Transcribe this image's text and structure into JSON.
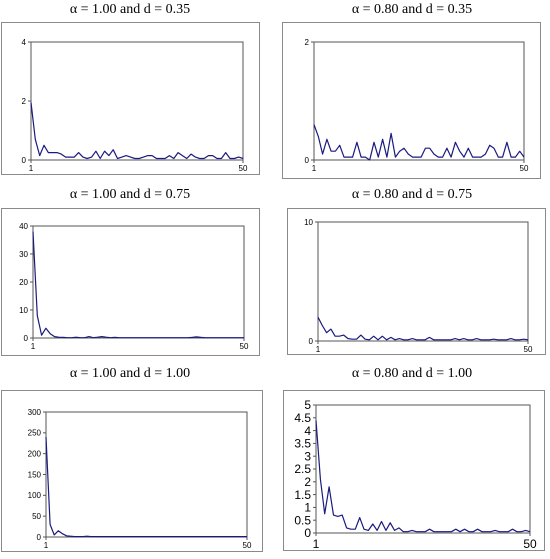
{
  "chart_data": [
    {
      "type": "line",
      "title": "α = 1.00 and d = 0.35",
      "ylim": [
        0,
        4
      ],
      "yticks": [
        0,
        2,
        4
      ],
      "xlim": [
        1,
        50
      ],
      "xticks": [
        1,
        50
      ],
      "grid": false,
      "series": [
        {
          "color": "#1a1a80",
          "values": [
            1.95,
            0.7,
            0.15,
            0.5,
            0.25,
            0.25,
            0.25,
            0.2,
            0.1,
            0.1,
            0.1,
            0.25,
            0.1,
            0.05,
            0.1,
            0.3,
            0.05,
            0.3,
            0.15,
            0.35,
            0.05,
            0.1,
            0.15,
            0.1,
            0.05,
            0.05,
            0.1,
            0.15,
            0.15,
            0.05,
            0.05,
            0.05,
            0.15,
            0.05,
            0.25,
            0.15,
            0.05,
            0.2,
            0.1,
            0.05,
            0.05,
            0.15,
            0.15,
            0.05,
            0.05,
            0.25,
            0.05,
            0.05,
            0.1,
            0.05
          ]
        }
      ]
    },
    {
      "type": "line",
      "title": "α = 0.80 and d = 0.35",
      "ylim": [
        0,
        2
      ],
      "yticks": [
        0,
        2
      ],
      "xlim": [
        1,
        50
      ],
      "xticks": [
        1,
        50
      ],
      "grid": false,
      "series": [
        {
          "color": "#1a1a80",
          "values": [
            0.6,
            0.4,
            0.1,
            0.35,
            0.15,
            0.15,
            0.25,
            0.05,
            0.05,
            0.05,
            0.3,
            0.05,
            0.05,
            0.0,
            0.3,
            0.05,
            0.35,
            0.05,
            0.45,
            0.05,
            0.15,
            0.2,
            0.1,
            0.05,
            0.05,
            0.05,
            0.2,
            0.2,
            0.1,
            0.05,
            0.05,
            0.2,
            0.05,
            0.3,
            0.15,
            0.05,
            0.2,
            0.05,
            0.05,
            0.05,
            0.1,
            0.25,
            0.2,
            0.05,
            0.05,
            0.3,
            0.05,
            0.05,
            0.15,
            0.05
          ]
        }
      ]
    },
    {
      "type": "line",
      "title": "α = 1.00 and d = 0.75",
      "ylim": [
        0,
        40
      ],
      "yticks": [
        0,
        10,
        20,
        30,
        40
      ],
      "xlim": [
        1,
        50
      ],
      "xticks": [
        1,
        50
      ],
      "grid": false,
      "series": [
        {
          "color": "#1a1a80",
          "values": [
            38,
            8,
            1,
            3.5,
            1.5,
            0.5,
            0.3,
            0.2,
            0.1,
            0.1,
            0.3,
            0.1,
            0.1,
            0.5,
            0.1,
            0.3,
            0.5,
            0.3,
            0.1,
            0.2,
            0.1,
            0.1,
            0.1,
            0.1,
            0.1,
            0.1,
            0.1,
            0.1,
            0.1,
            0.1,
            0.1,
            0.1,
            0.1,
            0.1,
            0.1,
            0.1,
            0.1,
            0.2,
            0.4,
            0.2,
            0.1,
            0.1,
            0.1,
            0.1,
            0.1,
            0.1,
            0.1,
            0.1,
            0.1,
            0.1
          ]
        }
      ]
    },
    {
      "type": "line",
      "title": "α = 0.80 and d = 0.75",
      "ylim": [
        0,
        10
      ],
      "yticks": [
        0,
        10
      ],
      "xlim": [
        1,
        50
      ],
      "xticks": [
        1,
        50
      ],
      "grid": false,
      "series": [
        {
          "color": "#1a1a80",
          "values": [
            2.0,
            1.3,
            0.7,
            1.0,
            0.4,
            0.4,
            0.5,
            0.2,
            0.15,
            0.15,
            0.5,
            0.15,
            0.1,
            0.4,
            0.1,
            0.4,
            0.1,
            0.3,
            0.1,
            0.2,
            0.1,
            0.1,
            0.2,
            0.1,
            0.1,
            0.1,
            0.3,
            0.1,
            0.1,
            0.1,
            0.1,
            0.1,
            0.2,
            0.1,
            0.2,
            0.1,
            0.1,
            0.2,
            0.1,
            0.1,
            0.1,
            0.15,
            0.1,
            0.1,
            0.1,
            0.2,
            0.1,
            0.1,
            0.15,
            0.1
          ]
        }
      ]
    },
    {
      "type": "line",
      "title": "α = 1.00 and d = 1.00",
      "ylim": [
        0,
        300
      ],
      "yticks": [
        0,
        50,
        100,
        150,
        200,
        250,
        300
      ],
      "xlim": [
        1,
        50
      ],
      "xticks": [
        1,
        50
      ],
      "grid": false,
      "series": [
        {
          "color": "#1a1a80",
          "values": [
            240,
            30,
            5,
            15,
            8,
            3,
            2,
            1,
            1,
            1,
            2,
            1,
            1,
            1,
            1,
            1,
            1,
            1,
            1,
            1,
            1,
            1,
            1,
            1,
            1,
            1,
            1,
            1,
            1,
            1,
            1,
            1,
            1,
            1,
            1,
            1,
            1,
            1,
            1,
            1,
            1,
            1,
            1,
            1,
            1,
            1,
            1,
            1,
            1,
            1
          ]
        }
      ]
    },
    {
      "type": "line",
      "title": "α = 0.80 and d = 1.00",
      "ylim": [
        0,
        5
      ],
      "yticks": [
        0,
        0.5,
        1,
        1.5,
        2,
        2.5,
        3,
        3.5,
        4,
        4.5,
        5
      ],
      "xlim": [
        1,
        50
      ],
      "xticks": [
        1,
        50
      ],
      "grid": false,
      "series": [
        {
          "color": "#1a1a80",
          "values": [
            4.4,
            2.1,
            0.75,
            1.8,
            0.7,
            0.65,
            0.7,
            0.2,
            0.15,
            0.15,
            0.6,
            0.15,
            0.1,
            0.35,
            0.1,
            0.45,
            0.1,
            0.4,
            0.1,
            0.2,
            0.05,
            0.05,
            0.1,
            0.05,
            0.05,
            0.05,
            0.15,
            0.05,
            0.05,
            0.05,
            0.05,
            0.05,
            0.15,
            0.05,
            0.15,
            0.05,
            0.05,
            0.15,
            0.05,
            0.05,
            0.05,
            0.1,
            0.05,
            0.05,
            0.05,
            0.15,
            0.05,
            0.05,
            0.1,
            0.05
          ]
        }
      ]
    }
  ]
}
